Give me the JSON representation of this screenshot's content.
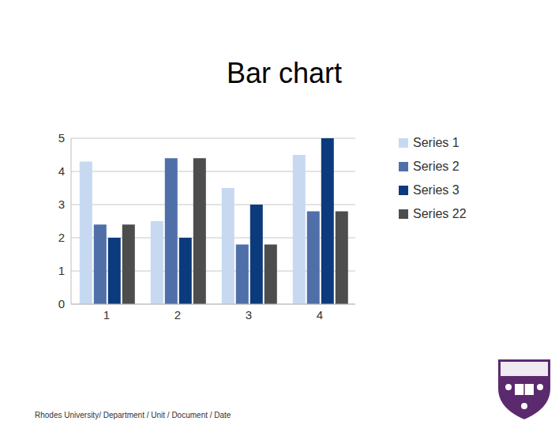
{
  "title": "Bar chart",
  "footer": "Rhodes University/ Department / Unit / Document / Date",
  "chart_data": {
    "type": "bar",
    "categories": [
      "1",
      "2",
      "3",
      "4"
    ],
    "series": [
      {
        "name": "Series 1",
        "color": "#c6d9f1",
        "values": [
          4.3,
          2.5,
          3.5,
          4.5
        ]
      },
      {
        "name": "Series 2",
        "color": "#4f6fa8",
        "values": [
          2.4,
          4.4,
          1.8,
          2.8
        ]
      },
      {
        "name": "Series 3",
        "color": "#0b3b7c",
        "values": [
          2.0,
          2.0,
          3.0,
          5.0
        ]
      },
      {
        "name": "Series 22",
        "color": "#4d4d4d",
        "values": [
          2.4,
          4.4,
          1.8,
          2.8
        ]
      }
    ],
    "ylim": [
      0,
      5
    ],
    "yticks": [
      0,
      1,
      2,
      3,
      4,
      5
    ],
    "grid": true,
    "legend": "right"
  }
}
